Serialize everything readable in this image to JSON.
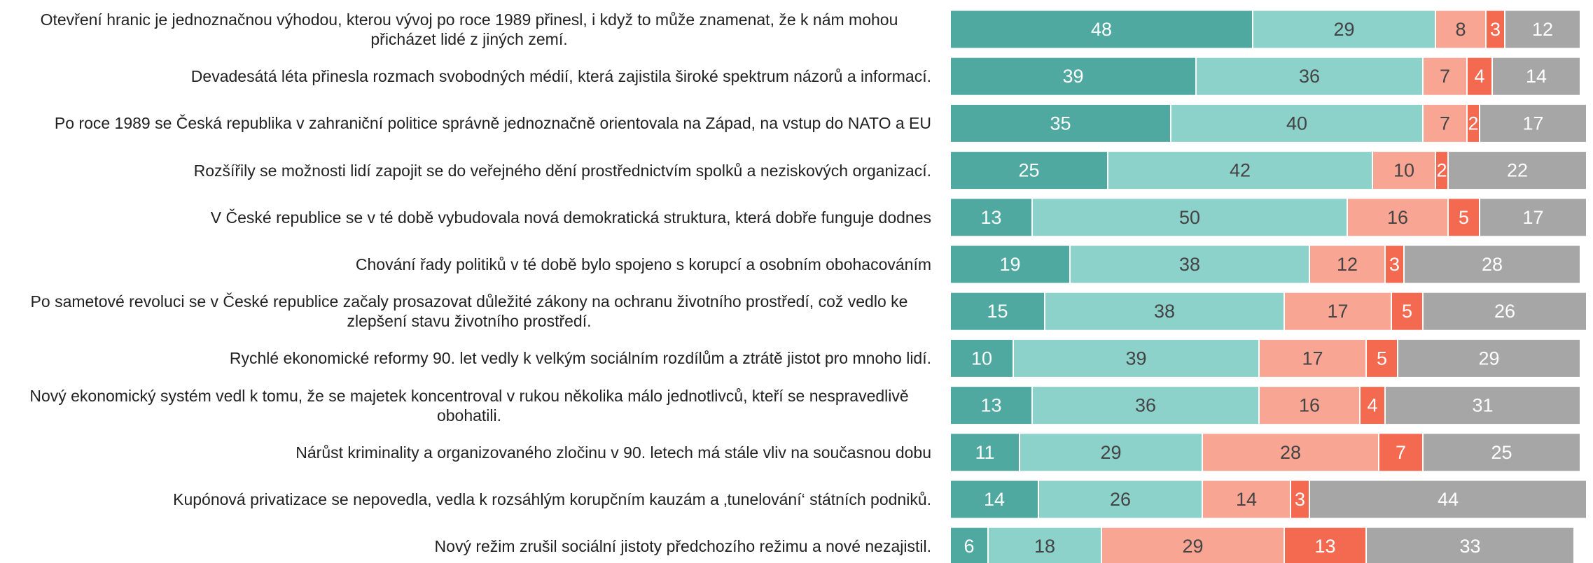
{
  "chart_data": {
    "type": "stacked-barh",
    "categories": [
      "Otevření hranic je jednoznačnou výhodou, kterou vývoj po roce 1989 přinesl, i když to může znamenat, že k nám mohou přicházet lidé z jiných zemí.",
      "Devadesátá léta přinesla rozmach svobodných médií, která zajistila široké spektrum názorů a informací.",
      "Po roce 1989 se Česká republika v zahraniční politice správně jednoznačně orientovala na Západ, na vstup do NATO a EU",
      "Rozšířily se možnosti lidí zapojit se do veřejného dění prostřednictvím spolků a neziskových organizací.",
      "V České republice se v té době vybudovala nová demokratická struktura, která dobře funguje dodnes",
      "Chování řady politiků v té době bylo spojeno s korupcí a osobním obohacováním",
      "Po sametové revoluci se v České republice začaly prosazovat důležité zákony na ochranu životního prostředí, což vedlo ke zlepšení stavu životního prostředí.",
      "Rychlé ekonomické reformy 90. let vedly k velkým sociálním rozdílům a ztrátě jistot pro mnoho lidí.",
      "Nový ekonomický systém vedl k tomu, že se majetek koncentroval v rukou několika málo jednotlivců, kteří se nespravedlivě obohatili.",
      "Nárůst kriminality a organizovaného zločinu v 90. letech má stále vliv na současnou dobu",
      "Kupónová privatizace se nepovedla, vedla k rozsáhlým korupčním kauzám a ‚tunelování‘ státních podniků.",
      "Nový režim zrušil sociální jistoty předchozího režimu a nové nezajistil."
    ],
    "series": [
      {
        "color": "#4fa9a1",
        "values": [
          48,
          39,
          35,
          25,
          13,
          19,
          15,
          10,
          13,
          11,
          14,
          6
        ]
      },
      {
        "color": "#8dd1cb",
        "values": [
          29,
          36,
          40,
          42,
          50,
          38,
          38,
          39,
          36,
          29,
          26,
          18
        ]
      },
      {
        "color": "#f8a593",
        "values": [
          8,
          7,
          7,
          10,
          16,
          12,
          17,
          17,
          16,
          28,
          14,
          29
        ]
      },
      {
        "color": "#f36a51",
        "values": [
          3,
          4,
          2,
          2,
          5,
          3,
          5,
          5,
          4,
          7,
          3,
          13
        ]
      },
      {
        "color": "#a6a6a6",
        "values": [
          12,
          14,
          17,
          22,
          17,
          28,
          26,
          29,
          31,
          25,
          44,
          33
        ]
      }
    ],
    "xlim": [
      0,
      100
    ]
  }
}
